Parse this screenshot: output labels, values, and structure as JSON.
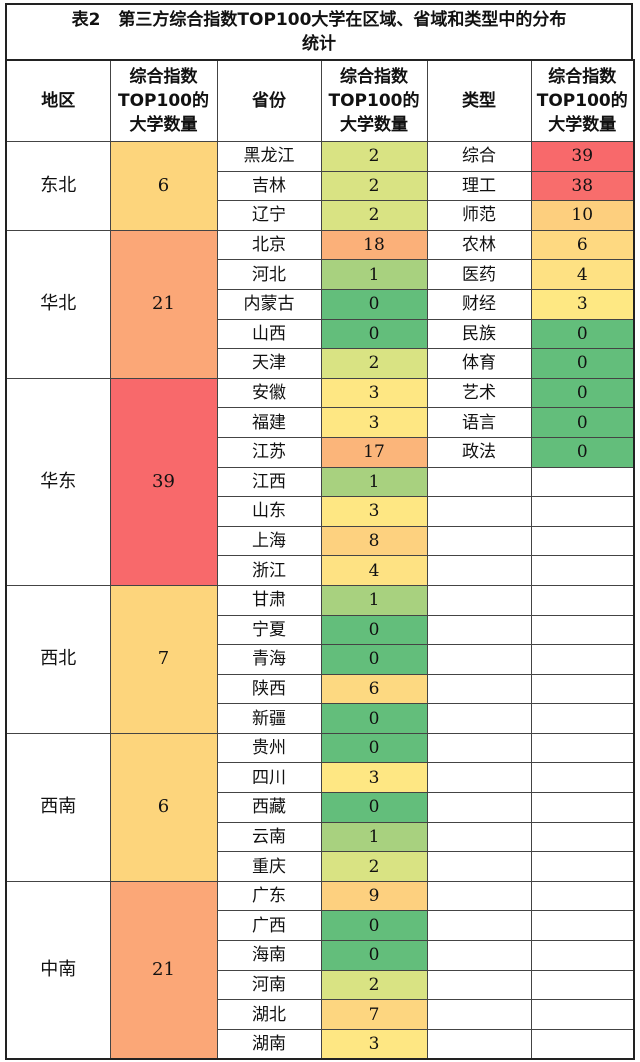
{
  "title": {
    "label": "表2",
    "text": "第三方综合指数TOP100大学在区域、省域和类型中的分布",
    "text2": "统计"
  },
  "headers": {
    "region": "地区",
    "region_count": "综合指数TOP100的大学数量",
    "province": "省份",
    "province_count": "综合指数TOP100的大学数量",
    "type": "类型",
    "type_count": "综合指数TOP100的大学数量"
  },
  "regions": [
    {
      "name": "东北",
      "count": "6",
      "color": "#fdd57c",
      "provinces": [
        {
          "name": "黑龙江",
          "count": "2",
          "color": "#d9e383"
        },
        {
          "name": "吉林",
          "count": "2",
          "color": "#d9e383"
        },
        {
          "name": "辽宁",
          "count": "2",
          "color": "#d9e383"
        }
      ]
    },
    {
      "name": "华北",
      "count": "21",
      "color": "#fba777",
      "provinces": [
        {
          "name": "北京",
          "count": "18",
          "color": "#fbb079"
        },
        {
          "name": "河北",
          "count": "1",
          "color": "#a8d17f"
        },
        {
          "name": "内蒙古",
          "count": "0",
          "color": "#63be7b"
        },
        {
          "name": "山西",
          "count": "0",
          "color": "#63be7b"
        },
        {
          "name": "天津",
          "count": "2",
          "color": "#d9e383"
        }
      ]
    },
    {
      "name": "华东",
      "count": "39",
      "color": "#f8696b",
      "provinces": [
        {
          "name": "安徽",
          "count": "3",
          "color": "#fee783"
        },
        {
          "name": "福建",
          "count": "3",
          "color": "#fee783"
        },
        {
          "name": "江苏",
          "count": "17",
          "color": "#fbb57a"
        },
        {
          "name": "江西",
          "count": "1",
          "color": "#a8d17f"
        },
        {
          "name": "山东",
          "count": "3",
          "color": "#fee783"
        },
        {
          "name": "上海",
          "count": "8",
          "color": "#fdd17f"
        },
        {
          "name": "浙江",
          "count": "4",
          "color": "#fee283"
        }
      ]
    },
    {
      "name": "西北",
      "count": "7",
      "color": "#fdd57c",
      "provinces": [
        {
          "name": "甘肃",
          "count": "1",
          "color": "#a8d17f"
        },
        {
          "name": "宁夏",
          "count": "0",
          "color": "#63be7b"
        },
        {
          "name": "青海",
          "count": "0",
          "color": "#63be7b"
        },
        {
          "name": "陕西",
          "count": "6",
          "color": "#fdd981"
        },
        {
          "name": "新疆",
          "count": "0",
          "color": "#63be7b"
        }
      ]
    },
    {
      "name": "西南",
      "count": "6",
      "color": "#fdd57c",
      "provinces": [
        {
          "name": "贵州",
          "count": "0",
          "color": "#63be7b"
        },
        {
          "name": "四川",
          "count": "3",
          "color": "#fee783"
        },
        {
          "name": "西藏",
          "count": "0",
          "color": "#63be7b"
        },
        {
          "name": "云南",
          "count": "1",
          "color": "#a8d17f"
        },
        {
          "name": "重庆",
          "count": "2",
          "color": "#d9e383"
        }
      ]
    },
    {
      "name": "中南",
      "count": "21",
      "color": "#fba777",
      "provinces": [
        {
          "name": "广东",
          "count": "9",
          "color": "#fdd07f"
        },
        {
          "name": "广西",
          "count": "0",
          "color": "#63be7b"
        },
        {
          "name": "海南",
          "count": "0",
          "color": "#63be7b"
        },
        {
          "name": "河南",
          "count": "2",
          "color": "#d9e383"
        },
        {
          "name": "湖北",
          "count": "7",
          "color": "#fdd680"
        },
        {
          "name": "湖南",
          "count": "3",
          "color": "#fee783"
        }
      ]
    }
  ],
  "types": [
    {
      "name": "综合",
      "count": "39",
      "color": "#f8696b"
    },
    {
      "name": "理工",
      "count": "38",
      "color": "#f86d6c"
    },
    {
      "name": "师范",
      "count": "10",
      "color": "#fdcf7e"
    },
    {
      "name": "农林",
      "count": "6",
      "color": "#fed981"
    },
    {
      "name": "医药",
      "count": "4",
      "color": "#fee183"
    },
    {
      "name": "财经",
      "count": "3",
      "color": "#fee883"
    },
    {
      "name": "民族",
      "count": "0",
      "color": "#63be7b"
    },
    {
      "name": "体育",
      "count": "0",
      "color": "#63be7b"
    },
    {
      "name": "艺术",
      "count": "0",
      "color": "#63be7b"
    },
    {
      "name": "语言",
      "count": "0",
      "color": "#63be7b"
    },
    {
      "name": "政法",
      "count": "0",
      "color": "#63be7b"
    }
  ]
}
